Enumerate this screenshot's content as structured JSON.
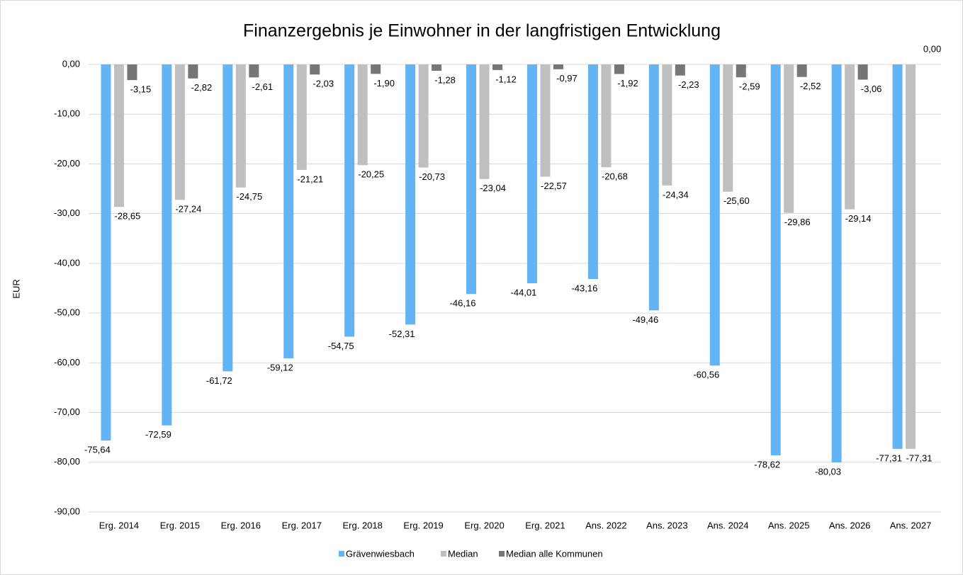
{
  "chart_data": {
    "type": "bar",
    "title": "Finanzergebnis je Einwohner in der langfristigen Entwicklung",
    "y_label": "EUR",
    "categories": [
      "Erg. 2014",
      "Erg. 2015",
      "Erg. 2016",
      "Erg. 2017",
      "Erg. 2018",
      "Erg. 2019",
      "Erg. 2020",
      "Erg. 2021",
      "Ans. 2022",
      "Ans. 2023",
      "Ans. 2024",
      "Ans. 2025",
      "Ans. 2026",
      "Ans. 2027"
    ],
    "series": [
      {
        "name": "Grävenwiesbach",
        "color": "#62b4f4",
        "values": [
          -75.64,
          -72.59,
          -61.72,
          -59.12,
          -54.75,
          -52.31,
          -46.16,
          -44.01,
          -43.16,
          -49.46,
          -60.56,
          -78.62,
          -80.03,
          -77.31
        ],
        "value_labels": [
          "-75,64",
          "-72,59",
          "-61,72",
          "-59,12",
          "-54,75",
          "-52,31",
          "-46,16",
          "-44,01",
          "-43,16",
          "-49,46",
          "-60,56",
          "-78,62",
          "-80,03",
          "-77,31"
        ]
      },
      {
        "name": "Median",
        "color": "#bfbfbf",
        "values": [
          -28.65,
          -27.24,
          -24.75,
          -21.21,
          -20.25,
          -20.73,
          -23.04,
          -22.57,
          -20.68,
          -24.34,
          -25.6,
          -29.86,
          -29.14,
          -77.31
        ],
        "value_labels": [
          "-28,65",
          "-27,24",
          "-24,75",
          "-21,21",
          "-20,25",
          "-20,73",
          "-23,04",
          "-22,57",
          "-20,68",
          "-24,34",
          "-25,60",
          "-29,86",
          "-29,14",
          "-77,31"
        ]
      },
      {
        "name": "Median alle Kommunen",
        "color": "#767676",
        "values": [
          -3.15,
          -2.82,
          -2.61,
          -2.03,
          -1.9,
          -1.28,
          -1.12,
          -0.97,
          -1.92,
          -2.23,
          -2.59,
          -2.52,
          -3.06,
          0.0
        ],
        "value_labels": [
          "-3,15",
          "-2,82",
          "-2,61",
          "-2,03",
          "-1,90",
          "-1,28",
          "-1,12",
          "-0,97",
          "-1,92",
          "-2,23",
          "-2,59",
          "-2,52",
          "-3,06",
          "0,00"
        ]
      }
    ],
    "ylim": [
      -90,
      0
    ],
    "yticks": [
      {
        "value": 0,
        "label": "0,00"
      },
      {
        "value": -10,
        "label": "-10,00"
      },
      {
        "value": -20,
        "label": "-20,00"
      },
      {
        "value": -30,
        "label": "-30,00"
      },
      {
        "value": -40,
        "label": "-40,00"
      },
      {
        "value": -50,
        "label": "-50,00"
      },
      {
        "value": -60,
        "label": "-60,00"
      },
      {
        "value": -70,
        "label": "-70,00"
      },
      {
        "value": -80,
        "label": "-80,00"
      },
      {
        "value": -90,
        "label": "-90,00"
      }
    ],
    "grid": true,
    "legend": "bottom"
  }
}
